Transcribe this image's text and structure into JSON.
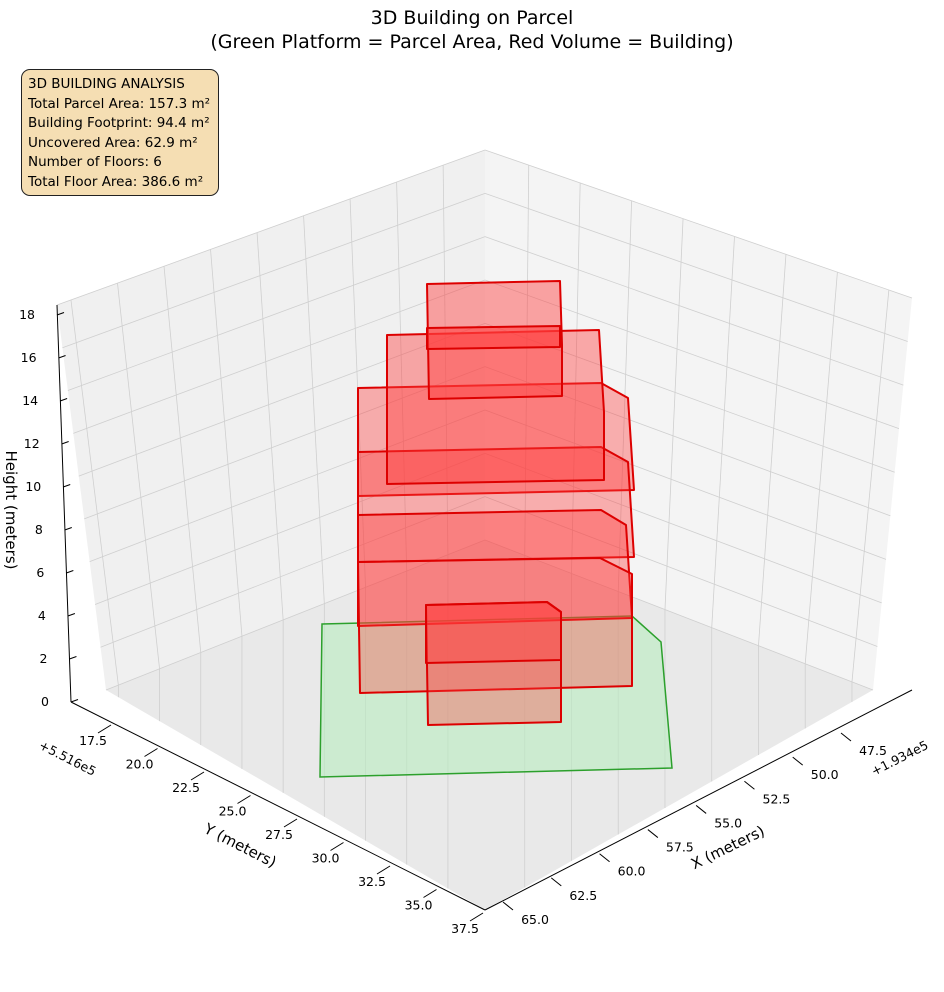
{
  "title_line1": "3D Building on Parcel",
  "title_line2": "(Green Platform = Parcel Area, Red Volume = Building)",
  "info_box": {
    "heading": "3D BUILDING ANALYSIS",
    "parcel_area": "Total Parcel Area: 157.3 m²",
    "footprint": "Building Footprint: 94.4 m²",
    "uncovered": "Uncovered Area: 62.9 m²",
    "floors": "Number of Floors: 6",
    "floor_area": "Total Floor Area: 386.6 m²"
  },
  "colors": {
    "parcel_fill": "#b9ecc0",
    "parcel_edge": "#2ca02c",
    "building_fill": "#ff3b3b",
    "building_edge": "#dd0000",
    "pane": "#f2f2f2",
    "grid": "#cccccc"
  },
  "chart_data": {
    "type": "3d-surface",
    "xlabel": "X (meters)",
    "ylabel": "Y (meters)",
    "zlabel": "Height (meters)",
    "x_offset": "+1.934e5",
    "y_offset": "+5.516e5",
    "x_ticks": [
      "47.5",
      "50.0",
      "52.5",
      "55.0",
      "57.5",
      "60.0",
      "62.5",
      "65.0"
    ],
    "y_ticks": [
      "17.5",
      "20.0",
      "22.5",
      "25.0",
      "27.5",
      "30.0",
      "32.5",
      "35.0",
      "37.5"
    ],
    "z_ticks": [
      "0",
      "2",
      "4",
      "6",
      "8",
      "10",
      "12",
      "14",
      "16",
      "18"
    ],
    "floors": [
      {
        "floor": 1,
        "z_bottom": 0,
        "z_top": 3
      },
      {
        "floor": 2,
        "z_bottom": 3,
        "z_top": 6
      },
      {
        "floor": 3,
        "z_bottom": 6,
        "z_top": 9
      },
      {
        "floor": 4,
        "z_bottom": 9,
        "z_top": 12
      },
      {
        "floor": 5,
        "z_bottom": 12,
        "z_top": 15
      },
      {
        "floor": 6,
        "z_bottom": 15,
        "z_top": 18
      }
    ]
  }
}
